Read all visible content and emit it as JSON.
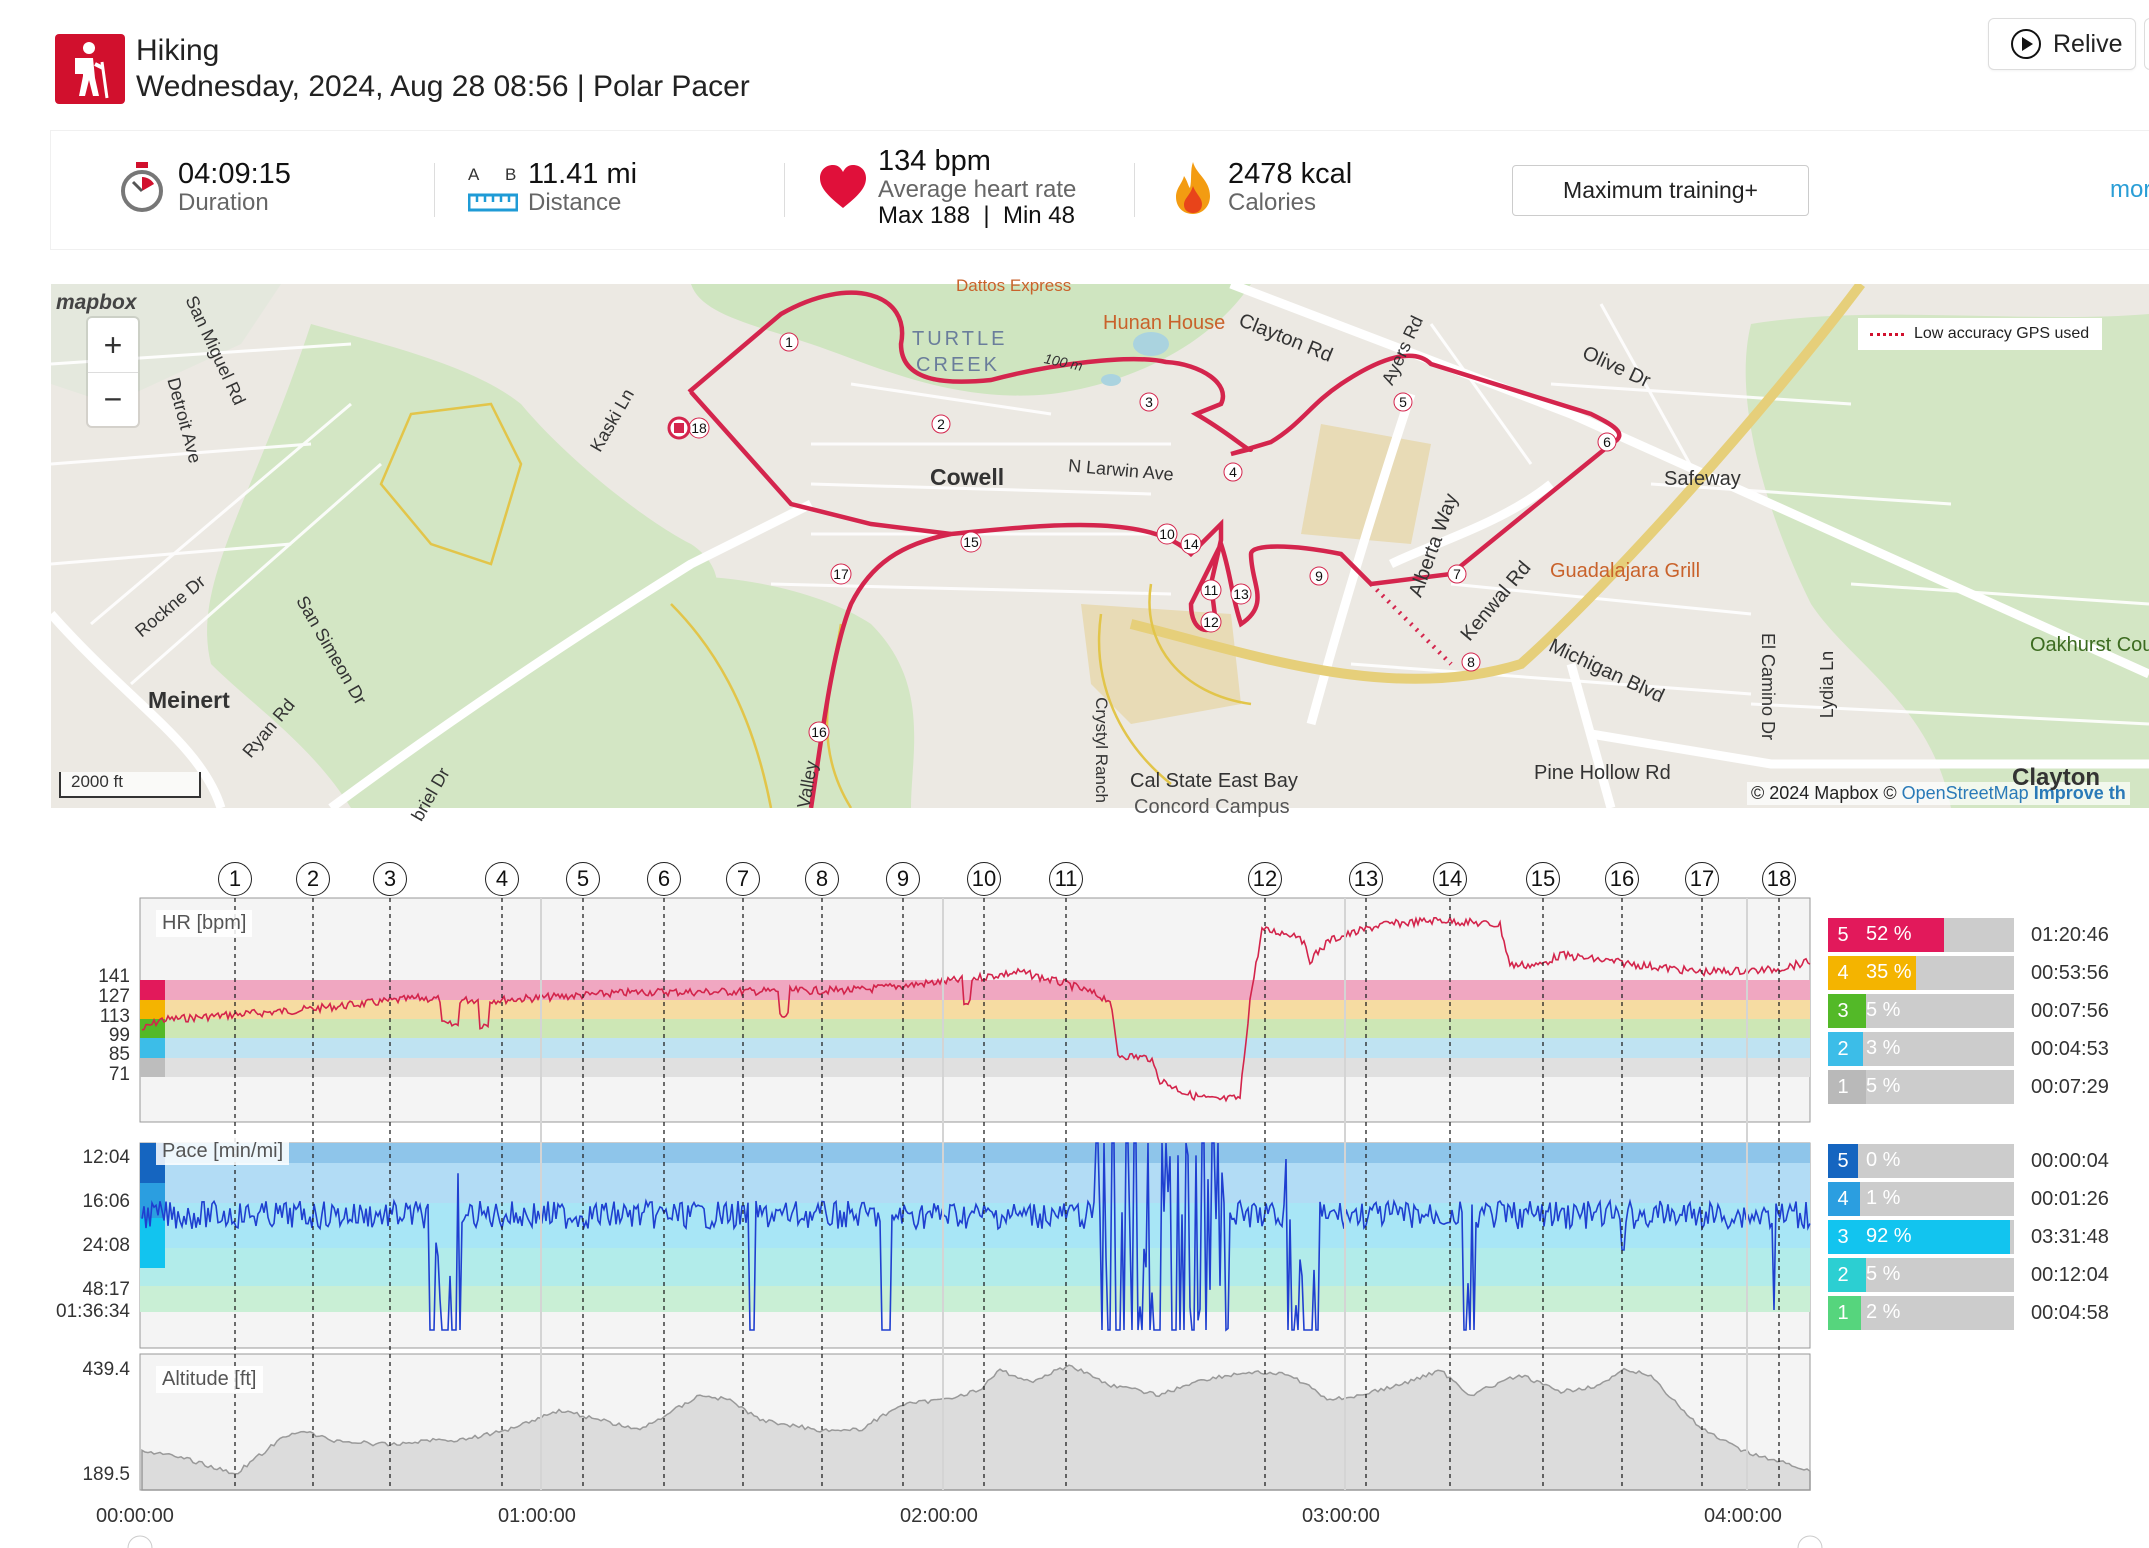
{
  "header": {
    "activity": "Hiking",
    "subtitle": "Wednesday, 2024, Aug 28 08:56 | Polar Pacer",
    "relive_label": "Relive"
  },
  "summary": {
    "duration_value": "04:09:15",
    "duration_label": "Duration",
    "distance_value": "11.41 mi",
    "distance_label": "Distance",
    "ab_a": "A",
    "ab_b": "B",
    "hr_value": "134 bpm",
    "hr_label": "Average heart rate",
    "hr_minmax": "Max 188  |  Min 48",
    "calories_value": "2478 kcal",
    "calories_label": "Calories",
    "training_button": "Maximum training+",
    "more_label": "mor"
  },
  "map": {
    "logo": "mapbox",
    "zoom_in": "+",
    "zoom_out": "−",
    "scale": "2000 ft",
    "gps_legend": "Low accuracy GPS used",
    "attribution_1": "© 2024 Mapbox © ",
    "attribution_2": "OpenStreetMap",
    "attribution_3": " Improve th",
    "labels": [
      "Cowell",
      "Meinert",
      "TURTLE",
      "CREEK",
      "Hunan House",
      "Clayton Rd",
      "Olive Dr",
      "Safeway",
      "Guadalajara Grill",
      "Alberta Way",
      "Kenwal Rd",
      "Michigan Blvd",
      "Pine Hollow Rd",
      "Cal State East Bay",
      "Concord Campus",
      "N Larwin Ave",
      "Oakhurst Cou",
      "Clayton",
      "San Miguel Rd",
      "Detroit Ave",
      "Kaski Ln",
      "Rockne Dr",
      "San Simeon Dr",
      "Ryan Rd",
      "El Camino Dr",
      "Lydia Ln",
      "Crystyl Ranch",
      "Ayers Rd",
      "100 m",
      "Valley",
      "briel Dr",
      "Dattos Express"
    ],
    "waypoints": [
      "1",
      "2",
      "3",
      "4",
      "5",
      "6",
      "7",
      "8",
      "9",
      "10",
      "11",
      "12",
      "13",
      "14",
      "15",
      "16",
      "17",
      "18"
    ]
  },
  "laps": [
    "1",
    "2",
    "3",
    "4",
    "5",
    "6",
    "7",
    "8",
    "9",
    "10",
    "11",
    "12",
    "13",
    "14",
    "15",
    "16",
    "17",
    "18"
  ],
  "hr_chart": {
    "title": "HR [bpm]",
    "ticks": [
      "141",
      "127",
      "113",
      "99",
      "85",
      "71"
    ],
    "zones": [
      {
        "zone": "5",
        "pct": "52 %",
        "time": "01:20:46",
        "color": "#e2195b",
        "frac": 0.52
      },
      {
        "zone": "4",
        "pct": "35 %",
        "time": "00:53:56",
        "color": "#f4b400",
        "frac": 0.35
      },
      {
        "zone": "3",
        "pct": "5 %",
        "time": "00:07:56",
        "color": "#53b928",
        "frac": 0.05
      },
      {
        "zone": "2",
        "pct": "3 %",
        "time": "00:04:53",
        "color": "#3cbde8",
        "frac": 0.03
      },
      {
        "zone": "1",
        "pct": "5 %",
        "time": "00:07:29",
        "color": "#b9b9b9",
        "frac": 0.05
      }
    ]
  },
  "pace_chart": {
    "title": "Pace [min/mi]",
    "ticks": [
      "12:04",
      "16:06",
      "24:08",
      "48:17",
      "01:36:34"
    ],
    "zones": [
      {
        "zone": "5",
        "pct": "0 %",
        "time": "00:00:04",
        "color": "#1565c0",
        "frac": 0.0
      },
      {
        "zone": "4",
        "pct": "1 %",
        "time": "00:01:26",
        "color": "#2b9ee0",
        "frac": 0.01
      },
      {
        "zone": "3",
        "pct": "92 %",
        "time": "03:31:48",
        "color": "#12c4ef",
        "frac": 0.92
      },
      {
        "zone": "2",
        "pct": "5 %",
        "time": "00:12:04",
        "color": "#2ccfd2",
        "frac": 0.05
      },
      {
        "zone": "1",
        "pct": "2 %",
        "time": "00:04:58",
        "color": "#56d57d",
        "frac": 0.02
      }
    ]
  },
  "altitude_chart": {
    "title": "Altitude [ft]",
    "ticks": [
      "439.4",
      "189.5"
    ]
  },
  "x_axis": [
    "00:00:00",
    "01:00:00",
    "02:00:00",
    "03:00:00",
    "04:00:00"
  ],
  "colors": {
    "brand_red": "#d1102d",
    "route": "#d4254d",
    "link": "#2a9ed6"
  }
}
